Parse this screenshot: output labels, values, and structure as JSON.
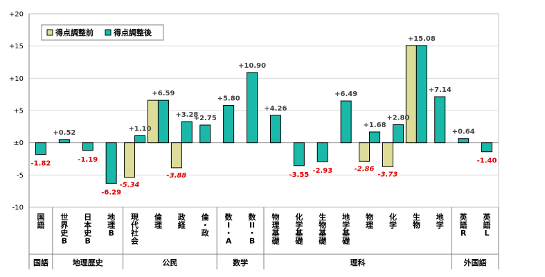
{
  "chart_data": {
    "type": "bar",
    "ylim": [
      -10,
      20
    ],
    "yticks": [
      "-10",
      "-5",
      "±0",
      "+5",
      "+10",
      "+15",
      "+20"
    ],
    "grid": true,
    "legend_position": "top-left",
    "categories": [
      "国語",
      "世界史B",
      "日本史B",
      "地理B",
      "現代社会",
      "倫理",
      "政経",
      "倫・政",
      "数I・A",
      "数II・B",
      "物理基礎",
      "化学基礎",
      "生物基礎",
      "地学基礎",
      "物理",
      "化学",
      "生物",
      "地学",
      "英語R",
      "英語L"
    ],
    "category_labels": [
      "国\n語",
      "世\n界\n史\nB",
      "日\n本\n史\nB",
      "地\n理\nB",
      "現\n代\n社\n会",
      "倫\n理",
      "政\n経",
      "倫\n・\n政",
      "数\nI\n・\nA",
      "数\nII\n・\nB",
      "物\n理\n基\n礎",
      "化\n学\n基\n礎",
      "生\n物\n基\n礎",
      "地\n学\n基\n礎",
      "物\n理",
      "化\n学",
      "生\n物",
      "地\n学",
      "英\n語\nR",
      "英\n語\nL"
    ],
    "series": [
      {
        "name": "得点調整前",
        "color": "#dddd99",
        "values": [
          null,
          null,
          null,
          null,
          -5.34,
          6.59,
          -3.88,
          null,
          null,
          null,
          null,
          null,
          null,
          null,
          -2.86,
          -3.73,
          15.08,
          null,
          null,
          null
        ],
        "labels": [
          null,
          null,
          null,
          null,
          "-5.34",
          null,
          "-3.88",
          null,
          null,
          null,
          null,
          null,
          null,
          null,
          "-2.86",
          "-3.73",
          null,
          null,
          null,
          null
        ]
      },
      {
        "name": "得点調整後",
        "color": "#1ab8a8",
        "values": [
          -1.82,
          0.52,
          -1.19,
          -6.29,
          1.1,
          6.59,
          3.28,
          2.75,
          5.8,
          10.9,
          4.26,
          -3.55,
          -2.93,
          6.49,
          1.68,
          2.8,
          15.08,
          7.14,
          0.64,
          -1.4
        ],
        "labels": [
          "-1.82",
          "+0.52",
          "-1.19",
          "-6.29",
          "+1.10",
          "+6.59",
          "+3.28",
          "+2.75",
          "+5.80",
          "+10.90",
          "+4.26",
          "-3.55",
          "-2.93",
          "+6.49",
          "+1.68",
          "+2.80",
          "+15.08",
          "+7.14",
          "+0.64",
          "-1.40"
        ]
      }
    ],
    "groups": [
      {
        "name": "国語",
        "start": 0,
        "end": 0
      },
      {
        "name": "地理歴史",
        "start": 1,
        "end": 3
      },
      {
        "name": "公民",
        "start": 4,
        "end": 7
      },
      {
        "name": "数学",
        "start": 8,
        "end": 9
      },
      {
        "name": "理科",
        "start": 10,
        "end": 17
      },
      {
        "name": "外国語",
        "start": 18,
        "end": 19
      }
    ]
  }
}
